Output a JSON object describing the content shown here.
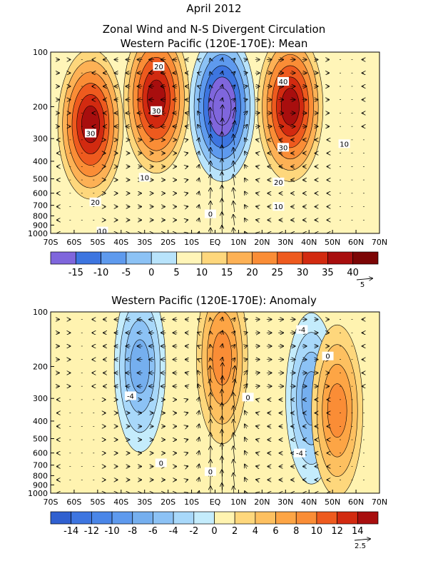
{
  "header": {
    "line1": "April 2012",
    "line2": "Zonal Wind and N-S Divergent Circulation",
    "line3": "Western Pacific (120E-170E): Mean",
    "panel2_title": "Western Pacific (120E-170E): Anomaly"
  },
  "chart_data": [
    {
      "type": "heatmap",
      "title": "Western Pacific (120E-170E): Mean",
      "x_ticks": [
        "70S",
        "60S",
        "50S",
        "40S",
        "30S",
        "20S",
        "10S",
        "EQ",
        "10N",
        "20N",
        "30N",
        "40N",
        "50N",
        "60N",
        "70N"
      ],
      "y_ticks": [
        "100",
        "200",
        "300",
        "400",
        "500",
        "600",
        "700",
        "800",
        "900",
        "1000"
      ],
      "y_scale": "log",
      "y_range": [
        1000,
        100
      ],
      "contour_labels": [
        {
          "text": "20",
          "lat": -24,
          "p": 120
        },
        {
          "text": "30",
          "lat": -25,
          "p": 210
        },
        {
          "text": "30",
          "lat": -53,
          "p": 280
        },
        {
          "text": "10",
          "lat": -30,
          "p": 490
        },
        {
          "text": "20",
          "lat": -51,
          "p": 670
        },
        {
          "text": "10",
          "lat": -48,
          "p": 970
        },
        {
          "text": "0",
          "lat": -2,
          "p": 780
        },
        {
          "text": "40",
          "lat": 29,
          "p": 145
        },
        {
          "text": "30",
          "lat": 29,
          "p": 335
        },
        {
          "text": "20",
          "lat": 27,
          "p": 520
        },
        {
          "text": "10",
          "lat": 27,
          "p": 710
        },
        {
          "text": "10",
          "lat": 55,
          "p": 320
        }
      ],
      "features": [
        {
          "kind": "westerly-max",
          "lat": -53,
          "p": 250,
          "value": 35
        },
        {
          "kind": "westerly-max",
          "lat": -25,
          "p": 180,
          "value": 30
        },
        {
          "kind": "westerly-max",
          "lat": 32,
          "p": 200,
          "value": 45
        },
        {
          "kind": "easterly-min",
          "lat": 3,
          "p": 200,
          "value": -10
        }
      ],
      "colorbar": {
        "labels": [
          "-15",
          "-10",
          "-5",
          "0",
          "5",
          "10",
          "15",
          "20",
          "25",
          "30",
          "35",
          "40"
        ],
        "colors": [
          "#7f66dc",
          "#3d75e0",
          "#5e9aee",
          "#8cc2f5",
          "#b8e3fb",
          "#fff5b8",
          "#fed77c",
          "#fdb155",
          "#fa8d36",
          "#ee5a1e",
          "#d22a10",
          "#a80e0e",
          "#7c0505"
        ]
      },
      "reference_vector": "5"
    },
    {
      "type": "heatmap",
      "title": "Western Pacific (120E-170E): Anomaly",
      "x_ticks": [
        "70S",
        "60S",
        "50S",
        "40S",
        "30S",
        "20S",
        "10S",
        "EQ",
        "10N",
        "20N",
        "30N",
        "40N",
        "50N",
        "60N",
        "70N"
      ],
      "y_ticks": [
        "100",
        "200",
        "300",
        "400",
        "500",
        "600",
        "700",
        "800",
        "900",
        "1000"
      ],
      "y_scale": "log",
      "y_range": [
        1000,
        100
      ],
      "contour_labels": [
        {
          "text": "-4",
          "lat": -36,
          "p": 290
        },
        {
          "text": "-4",
          "lat": 37,
          "p": 125
        },
        {
          "text": "0",
          "lat": 48,
          "p": 175
        },
        {
          "text": "0",
          "lat": 14,
          "p": 295
        },
        {
          "text": "-4",
          "lat": 36,
          "p": 600
        },
        {
          "text": "0",
          "lat": -23,
          "p": 680
        },
        {
          "text": "0",
          "lat": -2,
          "p": 760
        }
      ],
      "features": [
        {
          "kind": "negative-anomaly",
          "lat": -32,
          "p": 200,
          "value": -6
        },
        {
          "kind": "negative-anomaly",
          "lat": 41,
          "p": 300,
          "value": -6
        },
        {
          "kind": "positive-anomaly",
          "lat": 3,
          "p": 180,
          "value": 4
        },
        {
          "kind": "positive-anomaly",
          "lat": 52,
          "p": 350,
          "value": 4
        }
      ],
      "colorbar": {
        "labels": [
          "-14",
          "-12",
          "-10",
          "-8",
          "-6",
          "-4",
          "-2",
          "0",
          "2",
          "4",
          "6",
          "8",
          "10",
          "12",
          "14"
        ],
        "colors": [
          "#3060d0",
          "#3d75e0",
          "#4a86e8",
          "#5e9aee",
          "#75afef",
          "#8cc2f5",
          "#a8d8fa",
          "#c4ecfc",
          "#fff3b0",
          "#fed77c",
          "#fdc060",
          "#fda545",
          "#fa8d36",
          "#ee5a1e",
          "#d22a10",
          "#a80e0e"
        ]
      },
      "reference_vector": "2.5"
    }
  ]
}
